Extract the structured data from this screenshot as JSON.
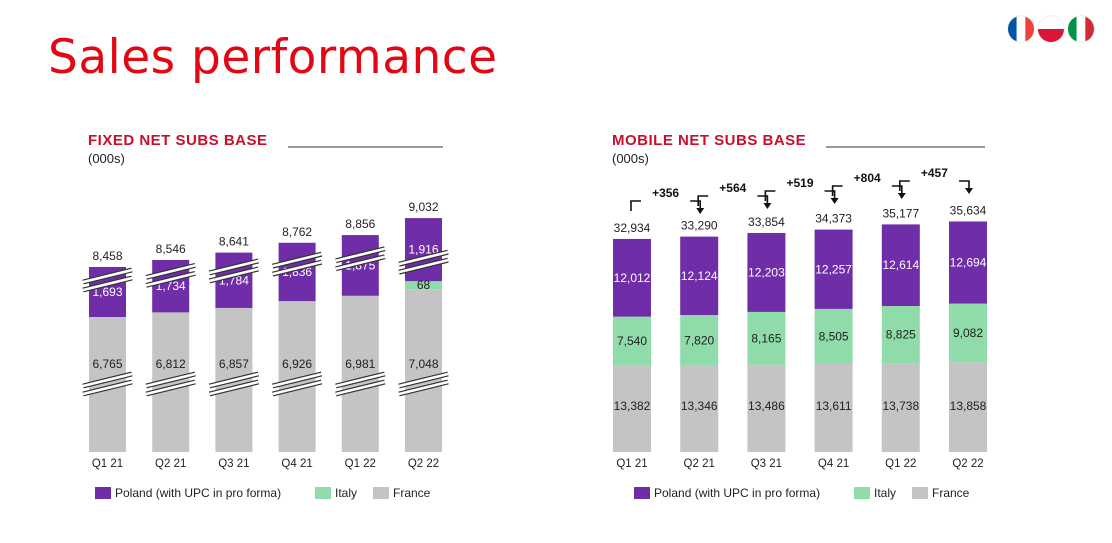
{
  "title": "Sales performance",
  "flags": [
    "france-flag-icon",
    "poland-flag-icon",
    "italy-flag-icon"
  ],
  "colors": {
    "poland": "#6f2da8",
    "italy": "#8fdba9",
    "france": "#c4c4c4",
    "brand": "#e30613"
  },
  "chart_data": [
    {
      "type": "bar",
      "stacked": true,
      "axis_break": true,
      "title": "FIXED NET SUBS BASE",
      "unit": "(000s)",
      "categories": [
        "Q1 21",
        "Q2 21",
        "Q3 21",
        "Q4 21",
        "Q1 22",
        "Q2 22"
      ],
      "series": [
        {
          "name": "France",
          "values": [
            6765,
            6812,
            6857,
            6926,
            6981,
            7048
          ]
        },
        {
          "name": "Italy",
          "values": [
            null,
            null,
            null,
            null,
            null,
            68
          ]
        },
        {
          "name": "Poland (with UPC in pro forma)",
          "values": [
            1693,
            1734,
            1784,
            1836,
            1875,
            1916
          ]
        }
      ],
      "totals": [
        8458,
        8546,
        8641,
        8762,
        8856,
        9032
      ],
      "segment_labels": {
        "France": [
          "6,765",
          "6,812",
          "6,857",
          "6,926",
          "6,981",
          "7,048"
        ],
        "Italy": [
          "",
          "",
          "",
          "",
          "",
          "68"
        ],
        "Poland (with UPC in pro forma)": [
          "1,693",
          "1,734",
          "1,784",
          "1,836",
          "1,875",
          "1,916"
        ]
      },
      "total_labels": [
        "8,458",
        "8,546",
        "8,641",
        "8,762",
        "8,856",
        "9,032"
      ],
      "legend": [
        "Poland (with UPC in pro forma)",
        "Italy",
        "France"
      ],
      "legend_position": "bottom"
    },
    {
      "type": "bar",
      "stacked": true,
      "axis_break": false,
      "title": "MOBILE NET SUBS BASE",
      "unit": "(000s)",
      "categories": [
        "Q1 21",
        "Q2 21",
        "Q3 21",
        "Q4 21",
        "Q1 22",
        "Q2 22"
      ],
      "series": [
        {
          "name": "France",
          "values": [
            13382,
            13346,
            13486,
            13611,
            13738,
            13858
          ]
        },
        {
          "name": "Italy",
          "values": [
            7540,
            7820,
            8165,
            8505,
            8825,
            9082
          ]
        },
        {
          "name": "Poland (with UPC in pro forma)",
          "values": [
            12012,
            12124,
            12203,
            12257,
            12614,
            12694
          ]
        }
      ],
      "totals": [
        32934,
        33290,
        33854,
        34373,
        35177,
        35634
      ],
      "segment_labels": {
        "France": [
          "13,382",
          "13,346",
          "13,486",
          "13,611",
          "13,738",
          "13,858"
        ],
        "Italy": [
          "7,540",
          "7,820",
          "8,165",
          "8,505",
          "8,825",
          "9,082"
        ],
        "Poland (with UPC in pro forma)": [
          "12,012",
          "12,124",
          "12,203",
          "12,257",
          "12,614",
          "12,694"
        ]
      },
      "total_labels": [
        "32,934",
        "33,290",
        "33,854",
        "34,373",
        "35,177",
        "35,634"
      ],
      "deltas": [
        "+356",
        "+564",
        "+519",
        "+804",
        "+457"
      ],
      "legend": [
        "Poland (with UPC in pro forma)",
        "Italy",
        "France"
      ],
      "legend_position": "bottom"
    }
  ]
}
